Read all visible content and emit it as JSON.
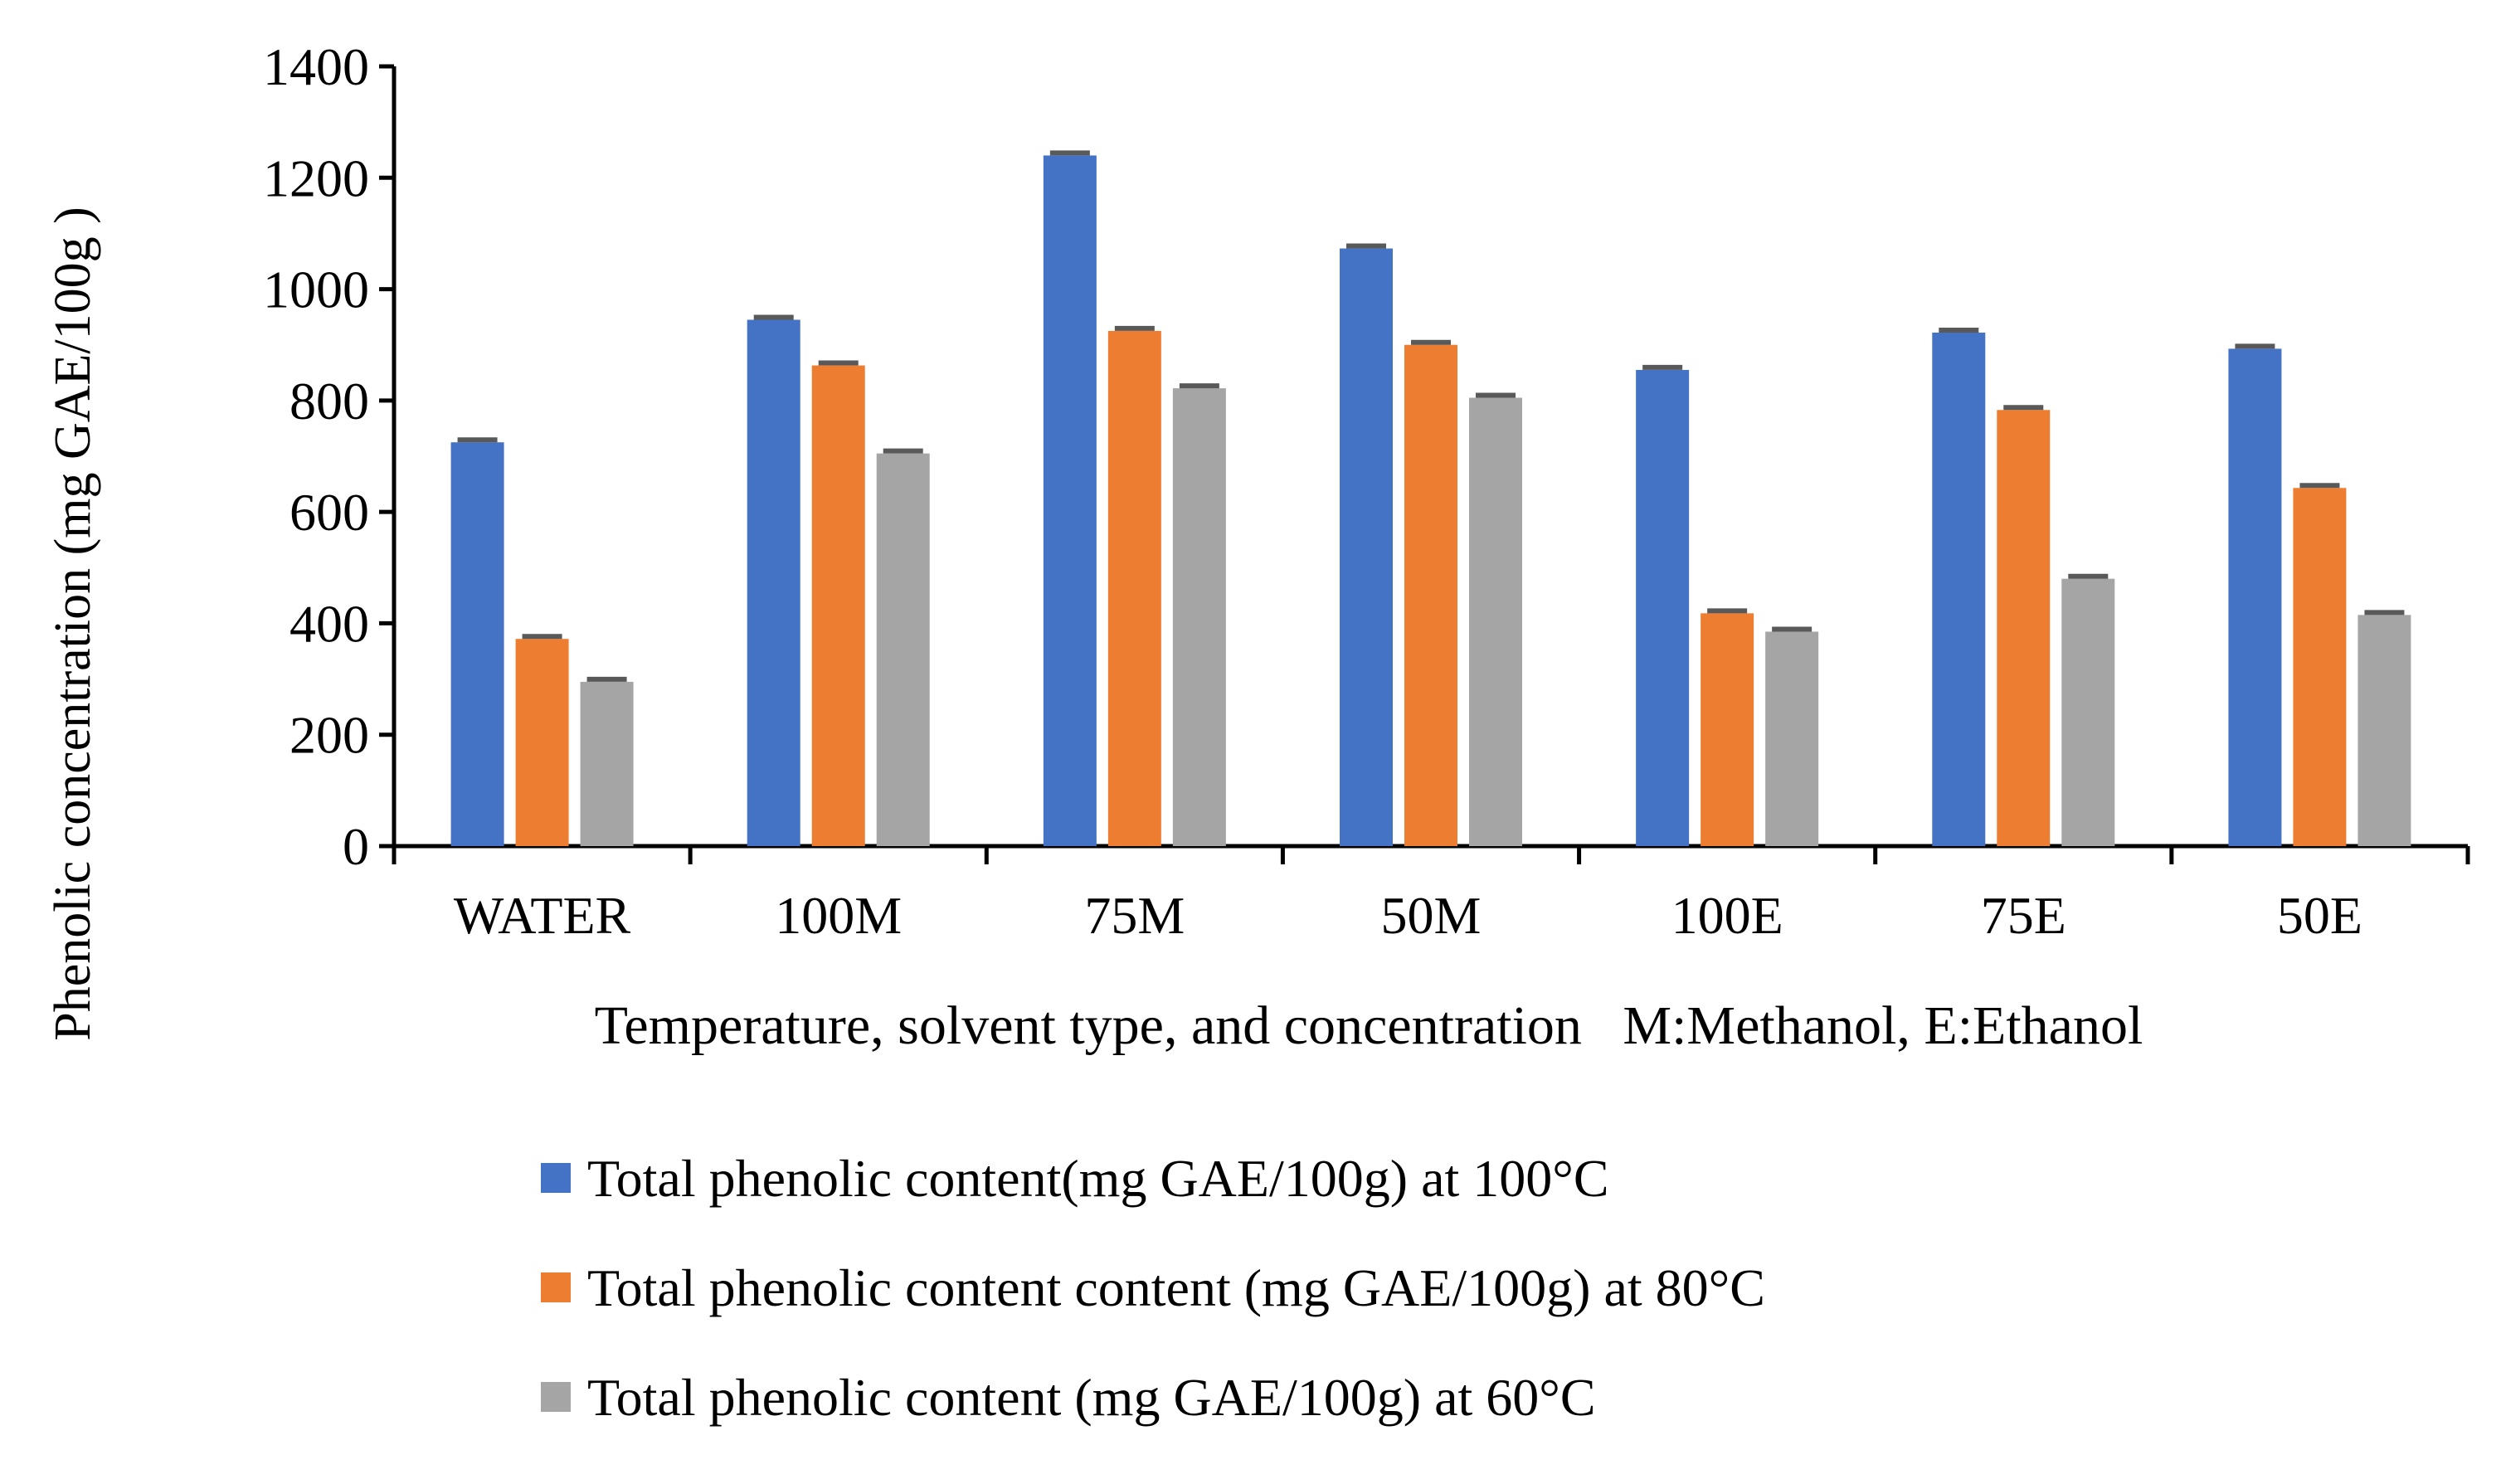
{
  "chart_data": {
    "type": "bar",
    "xlabel": "Temperature, solvent type, and concentration   M:Methanol, E:Ethanol",
    "ylabel": "Phenolic concentration (mg GAE/100g )",
    "ylim": [
      0,
      1400
    ],
    "yticks": [
      0,
      200,
      400,
      600,
      800,
      1000,
      1200,
      1400
    ],
    "grid": false,
    "legend_position": "bottom",
    "error_bars": true,
    "categories": [
      "WATER",
      "100M",
      "75M",
      "50M",
      "100E",
      "75E",
      "50E"
    ],
    "series": [
      {
        "name": "Total phenolic content(mg GAE/100g) at 100°C",
        "color": "#4472C4",
        "values": [
          725,
          945,
          1240,
          1073,
          855,
          922,
          893
        ]
      },
      {
        "name": "Total phenolic content content (mg GAE/100g) at 80°C",
        "color": "#ED7D31",
        "values": [
          372,
          863,
          925,
          900,
          418,
          783,
          643
        ]
      },
      {
        "name": "Total phenolic content (mg GAE/100g) at 60°C",
        "color": "#A5A5A5",
        "values": [
          295,
          705,
          822,
          805,
          385,
          480,
          415
        ]
      }
    ]
  }
}
